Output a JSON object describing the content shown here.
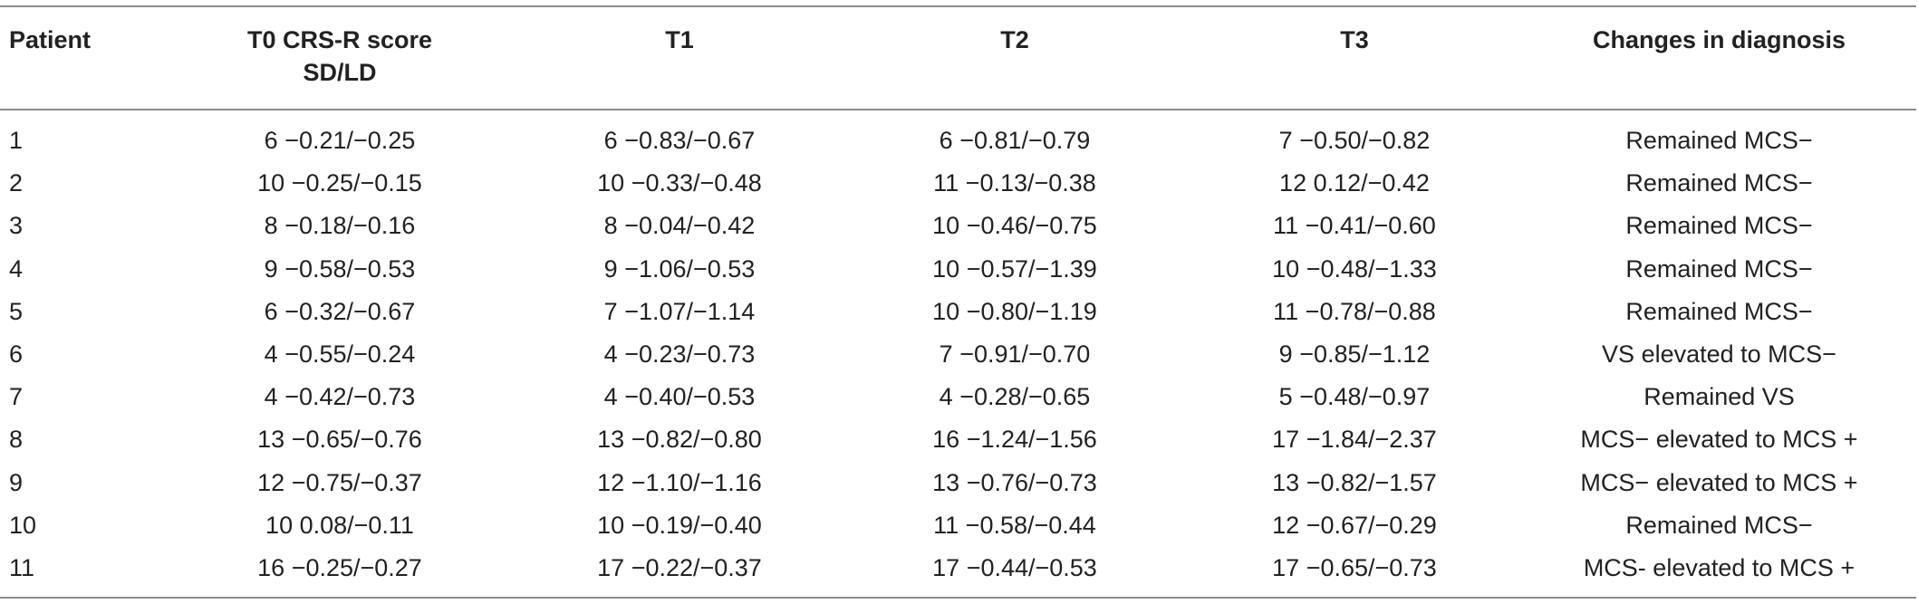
{
  "table": {
    "headers": {
      "patient": "Patient",
      "t0_line1": "T0 CRS-R score",
      "t0_line2": "SD/LD",
      "t1": "T1",
      "t2": "T2",
      "t3": "T3",
      "changes": "Changes in diagnosis"
    },
    "rows": [
      {
        "patient": "1",
        "t0": "6 −0.21/−0.25",
        "t1": "6 −0.83/−0.67",
        "t2": "6 −0.81/−0.79",
        "t3": "7 −0.50/−0.82",
        "change": "Remained MCS−"
      },
      {
        "patient": "2",
        "t0": "10 −0.25/−0.15",
        "t1": "10 −0.33/−0.48",
        "t2": "11 −0.13/−0.38",
        "t3": "12 0.12/−0.42",
        "change": "Remained MCS−"
      },
      {
        "patient": "3",
        "t0": "8 −0.18/−0.16",
        "t1": "8 −0.04/−0.42",
        "t2": "10 −0.46/−0.75",
        "t3": "11 −0.41/−0.60",
        "change": "Remained MCS−"
      },
      {
        "patient": "4",
        "t0": "9 −0.58/−0.53",
        "t1": "9 −1.06/−0.53",
        "t2": "10 −0.57/−1.39",
        "t3": "10 −0.48/−1.33",
        "change": "Remained MCS−"
      },
      {
        "patient": "5",
        "t0": "6 −0.32/−0.67",
        "t1": "7 −1.07/−1.14",
        "t2": "10 −0.80/−1.19",
        "t3": "11 −0.78/−0.88",
        "change": "Remained MCS−"
      },
      {
        "patient": "6",
        "t0": "4 −0.55/−0.24",
        "t1": "4 −0.23/−0.73",
        "t2": "7 −0.91/−0.70",
        "t3": "9 −0.85/−1.12",
        "change": "VS elevated to MCS−"
      },
      {
        "patient": "7",
        "t0": "4 −0.42/−0.73",
        "t1": "4 −0.40/−0.53",
        "t2": "4 −0.28/−0.65",
        "t3": "5 −0.48/−0.97",
        "change": "Remained VS"
      },
      {
        "patient": "8",
        "t0": "13 −0.65/−0.76",
        "t1": "13 −0.82/−0.80",
        "t2": "16 −1.24/−1.56",
        "t3": "17 −1.84/−2.37",
        "change": "MCS− elevated to MCS +"
      },
      {
        "patient": "9",
        "t0": "12 −0.75/−0.37",
        "t1": "12 −1.10/−1.16",
        "t2": "13 −0.76/−0.73",
        "t3": "13 −0.82/−1.57",
        "change": "MCS− elevated to MCS +"
      },
      {
        "patient": "10",
        "t0": "10 0.08/−0.11",
        "t1": "10 −0.19/−0.40",
        "t2": "11 −0.58/−0.44",
        "t3": "12 −0.67/−0.29",
        "change": "Remained MCS−"
      },
      {
        "patient": "11",
        "t0": "16 −0.25/−0.27",
        "t1": "17 −0.22/−0.37",
        "t2": "17 −0.44/−0.53",
        "t3": "17 −0.65/−0.73",
        "change": "MCS- elevated to MCS +"
      }
    ]
  }
}
